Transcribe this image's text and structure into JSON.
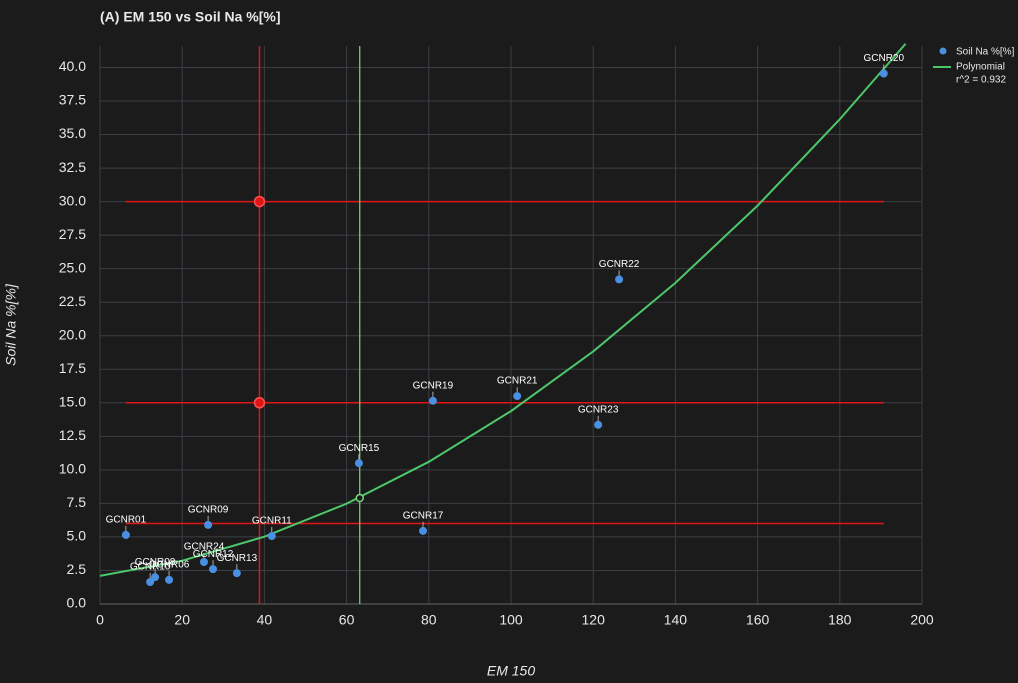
{
  "chart_data": {
    "type": "scatter",
    "title": "(A) EM 150 vs Soil Na %[%]",
    "x_label": "EM 150",
    "y_label": "Soil Na %[%]",
    "xlim": [
      0,
      200
    ],
    "ylim": [
      0,
      41.6
    ],
    "xticks": [
      0,
      20,
      40,
      60,
      80,
      100,
      120,
      140,
      160,
      180,
      200
    ],
    "yticks": [
      {
        "value": 0,
        "label": "0.0"
      },
      2.5,
      {
        "value": 5,
        "label": "5.0"
      },
      7.5,
      {
        "value": 10,
        "label": "10.0"
      },
      12.5,
      {
        "value": 15,
        "label": "15.0"
      },
      17.5,
      {
        "value": 20,
        "label": "20.0"
      },
      22.5,
      {
        "value": 25,
        "label": "25.0"
      },
      27.5,
      {
        "value": 30,
        "label": "30.0"
      },
      32.5,
      {
        "value": 35,
        "label": "35.0"
      },
      37.5,
      {
        "value": 40,
        "label": "40.0"
      }
    ],
    "grid": true,
    "series": [
      {
        "name": "Soil Na %[%]",
        "color": "#4a90e2",
        "labels": [
          "GCNR01",
          "GCNR09",
          "GCNR11",
          "GCNR24",
          "GCNR12",
          "GCNR13",
          "GCNR08",
          "GCNR10",
          "GCNR06",
          "GCNR15",
          "GCNR17",
          "GCNR19",
          "GCNR21",
          "GCNR23",
          "GCNR22",
          "GCNR20"
        ],
        "x": [
          6.3,
          26.3,
          41.8,
          25.3,
          27.5,
          33.3,
          13.4,
          12.2,
          16.8,
          63.0,
          78.6,
          81.0,
          101.5,
          121.2,
          126.3,
          190.7
        ],
        "values": [
          5.15,
          5.9,
          5.07,
          3.13,
          2.6,
          2.3,
          2.0,
          1.64,
          1.8,
          10.5,
          5.45,
          15.15,
          15.5,
          13.36,
          24.2,
          39.55
        ]
      }
    ],
    "fit": {
      "name": "Polynomial",
      "annotation": "r^2 = 0.932",
      "color": "#4cc76a",
      "x": [
        0,
        20,
        40,
        60,
        80,
        100,
        120,
        140,
        160,
        180,
        196
      ],
      "values": [
        2.1,
        3.23,
        5.02,
        7.48,
        10.6,
        14.38,
        18.83,
        23.94,
        29.7,
        36.14,
        41.77
      ]
    },
    "hlines": {
      "color": "#e01515",
      "values": [
        30,
        15,
        6
      ],
      "span": [
        6.3,
        190.7
      ]
    },
    "vline": {
      "color": "#e01515",
      "x": 38.8,
      "markers": [
        30,
        15
      ]
    },
    "green_vline": {
      "color": "#7ed67e",
      "x": 63.2,
      "marker": 7.9
    }
  }
}
